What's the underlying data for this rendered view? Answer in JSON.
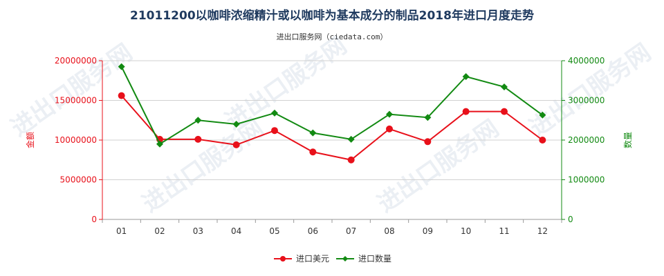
{
  "title": "21011200以咖啡浓缩精汁或以咖啡为基本成分的制品2018年进口月度走势",
  "subtitle": "进出口服务网（ciedata.com）",
  "watermark": "进出口服务网",
  "colors": {
    "left_axis": "#e8101a",
    "right_axis": "#128a12",
    "grid": "#d0d0d0",
    "title": "#1f3a5f"
  },
  "chart_data": {
    "type": "line",
    "categories": [
      "01",
      "02",
      "03",
      "04",
      "05",
      "06",
      "07",
      "08",
      "09",
      "10",
      "11",
      "12"
    ],
    "y_left": {
      "label": "金额",
      "ylim": [
        0,
        20000000
      ],
      "ticks": [
        "0",
        "5000000",
        "10000000",
        "15000000",
        "20000000"
      ]
    },
    "y_right": {
      "label": "数量",
      "ylim": [
        0,
        4000000
      ],
      "ticks": [
        "0",
        "1000000",
        "2000000",
        "3000000",
        "4000000"
      ]
    },
    "series": [
      {
        "name": "进口美元",
        "axis": "left",
        "color": "#e8101a",
        "marker": "circle",
        "values": [
          15600000,
          10100000,
          10100000,
          9400000,
          11200000,
          8500000,
          7500000,
          11400000,
          9800000,
          13600000,
          13600000,
          10000000
        ]
      },
      {
        "name": "进口数量",
        "axis": "right",
        "color": "#128a12",
        "marker": "diamond",
        "values": [
          3850000,
          1900000,
          2500000,
          2400000,
          2680000,
          2180000,
          2020000,
          2650000,
          2570000,
          3600000,
          3340000,
          2630000
        ]
      }
    ],
    "grid": true,
    "legend_position": "bottom-center"
  }
}
